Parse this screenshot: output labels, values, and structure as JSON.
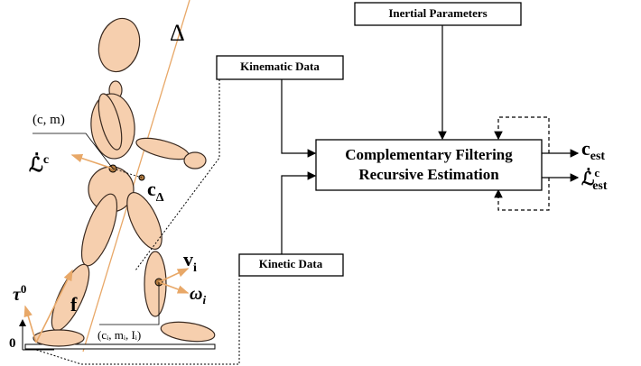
{
  "blocks": {
    "inertial": "Inertial Parameters",
    "kinematic": "Kinematic Data",
    "kinetic": "Kinetic Data",
    "filter": [
      "Complementary Filtering",
      "Recursive Estimation"
    ]
  },
  "outputs": [
    {
      "base": "c",
      "sub": "est"
    },
    {
      "base": "ℒ̇",
      "sup": "c",
      "sub": "est"
    }
  ],
  "figure_labels": {
    "delta": "Δ",
    "com_params": "(c, m)",
    "angular_momentum": {
      "base": "ℒ̇",
      "sup": "c"
    },
    "com_projection": {
      "base": "c",
      "sub": "Δ"
    },
    "velocity": {
      "base": "v",
      "sub": "i"
    },
    "angular_velocity": {
      "base": "ω",
      "sub": "i"
    },
    "torque": {
      "base": "τ",
      "sup": "0"
    },
    "force": "f",
    "origin": "0",
    "segment_params": "(cᵢ, mᵢ, Iᵢ)"
  }
}
